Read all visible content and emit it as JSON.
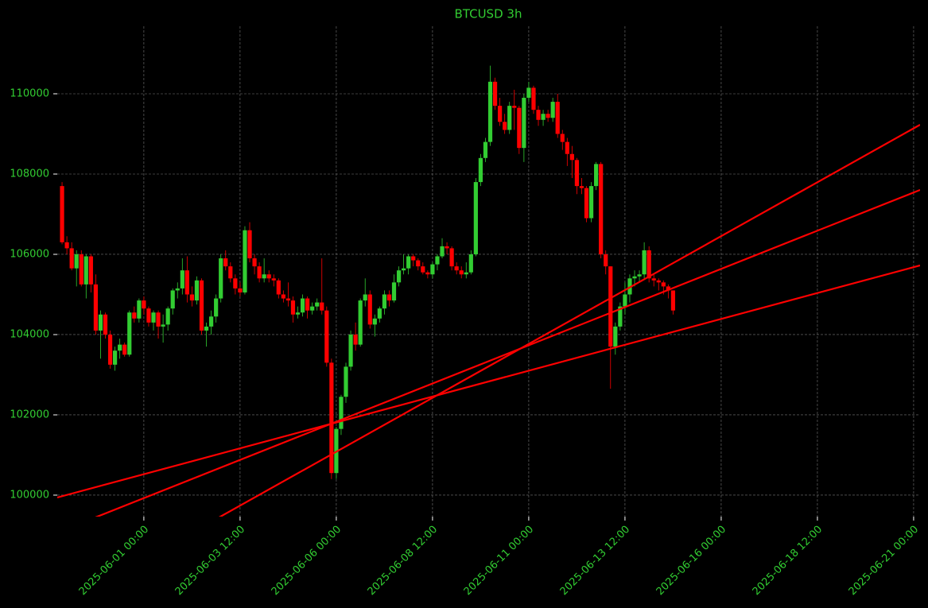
{
  "chart_data": {
    "type": "candlestick",
    "title": "BTCUSD 3h",
    "text_color": "#32cd32",
    "up_color": "#32cd32",
    "down_color": "#ff0000",
    "grid": true,
    "xlim": [
      "2025-05-29 18:00",
      "2025-06-21 04:00"
    ],
    "xticks": [
      "2025-06-01 00:00",
      "2025-06-03 12:00",
      "2025-06-06 00:00",
      "2025-06-08 12:00",
      "2025-06-11 00:00",
      "2025-06-13 12:00",
      "2025-06-16 00:00",
      "2025-06-18 12:00",
      "2025-06-21 00:00"
    ],
    "ylim": [
      99465,
      111683
    ],
    "yticks": [
      100000,
      102000,
      104000,
      106000,
      108000,
      110000
    ],
    "x": [
      "2025-05-29 21:00",
      "2025-05-30 00:00",
      "2025-05-30 03:00",
      "2025-05-30 06:00",
      "2025-05-30 09:00",
      "2025-05-30 12:00",
      "2025-05-30 15:00",
      "2025-05-30 18:00",
      "2025-05-30 21:00",
      "2025-05-31 00:00",
      "2025-05-31 03:00",
      "2025-05-31 06:00",
      "2025-05-31 09:00",
      "2025-05-31 12:00",
      "2025-05-31 15:00",
      "2025-05-31 18:00",
      "2025-05-31 21:00",
      "2025-06-01 00:00",
      "2025-06-01 03:00",
      "2025-06-01 06:00",
      "2025-06-01 09:00",
      "2025-06-01 12:00",
      "2025-06-01 15:00",
      "2025-06-01 18:00",
      "2025-06-01 21:00",
      "2025-06-02 00:00",
      "2025-06-02 03:00",
      "2025-06-02 06:00",
      "2025-06-02 09:00",
      "2025-06-02 12:00",
      "2025-06-02 15:00",
      "2025-06-02 18:00",
      "2025-06-02 21:00",
      "2025-06-03 00:00",
      "2025-06-03 03:00",
      "2025-06-03 06:00",
      "2025-06-03 09:00",
      "2025-06-03 12:00",
      "2025-06-03 15:00",
      "2025-06-03 18:00",
      "2025-06-03 21:00",
      "2025-06-04 00:00",
      "2025-06-04 03:00",
      "2025-06-04 06:00",
      "2025-06-04 09:00",
      "2025-06-04 12:00",
      "2025-06-04 15:00",
      "2025-06-04 18:00",
      "2025-06-04 21:00",
      "2025-06-05 00:00",
      "2025-06-05 03:00",
      "2025-06-05 06:00",
      "2025-06-05 09:00",
      "2025-06-05 12:00",
      "2025-06-05 15:00",
      "2025-06-05 18:00",
      "2025-06-05 21:00",
      "2025-06-06 00:00",
      "2025-06-06 03:00",
      "2025-06-06 06:00",
      "2025-06-06 09:00",
      "2025-06-06 12:00",
      "2025-06-06 15:00",
      "2025-06-06 18:00",
      "2025-06-06 21:00",
      "2025-06-07 00:00",
      "2025-06-07 03:00",
      "2025-06-07 06:00",
      "2025-06-07 09:00",
      "2025-06-07 12:00",
      "2025-06-07 15:00",
      "2025-06-07 18:00",
      "2025-06-07 21:00",
      "2025-06-08 00:00",
      "2025-06-08 03:00",
      "2025-06-08 06:00",
      "2025-06-08 09:00",
      "2025-06-08 12:00",
      "2025-06-08 15:00",
      "2025-06-08 18:00",
      "2025-06-08 21:00",
      "2025-06-09 00:00",
      "2025-06-09 03:00",
      "2025-06-09 06:00",
      "2025-06-09 09:00",
      "2025-06-09 12:00",
      "2025-06-09 15:00",
      "2025-06-09 18:00",
      "2025-06-09 21:00",
      "2025-06-10 00:00",
      "2025-06-10 03:00",
      "2025-06-10 06:00",
      "2025-06-10 09:00",
      "2025-06-10 12:00",
      "2025-06-10 15:00",
      "2025-06-10 18:00",
      "2025-06-10 21:00",
      "2025-06-11 00:00",
      "2025-06-11 03:00",
      "2025-06-11 06:00",
      "2025-06-11 09:00",
      "2025-06-11 12:00",
      "2025-06-11 15:00",
      "2025-06-11 18:00",
      "2025-06-11 21:00",
      "2025-06-12 00:00",
      "2025-06-12 03:00",
      "2025-06-12 06:00",
      "2025-06-12 09:00",
      "2025-06-12 12:00",
      "2025-06-12 15:00",
      "2025-06-12 18:00",
      "2025-06-12 21:00",
      "2025-06-13 00:00",
      "2025-06-13 03:00",
      "2025-06-13 06:00",
      "2025-06-13 09:00",
      "2025-06-13 12:00",
      "2025-06-13 15:00",
      "2025-06-13 18:00",
      "2025-06-13 21:00",
      "2025-06-14 00:00",
      "2025-06-14 03:00",
      "2025-06-14 06:00",
      "2025-06-14 09:00",
      "2025-06-14 12:00",
      "2025-06-14 15:00",
      "2025-06-14 18:00"
    ],
    "open": [
      107700,
      106300,
      106150,
      105650,
      106000,
      105250,
      105950,
      105250,
      104100,
      104500,
      104000,
      103250,
      103600,
      103750,
      103500,
      104550,
      104400,
      104850,
      104650,
      104300,
      104550,
      104200,
      104250,
      104650,
      105100,
      105150,
      105600,
      105000,
      104850,
      105350,
      104100,
      104200,
      104450,
      104900,
      105900,
      105700,
      105400,
      105150,
      105050,
      106600,
      105900,
      105700,
      105400,
      105500,
      105400,
      105350,
      105000,
      104900,
      104850,
      104500,
      104550,
      104900,
      104600,
      104700,
      104800,
      104600,
      103300,
      100550,
      101650,
      102450,
      103200,
      104000,
      103750,
      104850,
      105000,
      104250,
      104400,
      104650,
      105000,
      104850,
      105300,
      105600,
      105650,
      105950,
      105850,
      105700,
      105550,
      105500,
      105750,
      105950,
      106200,
      106150,
      105700,
      105600,
      105500,
      105550,
      106000,
      107800,
      108400,
      108800,
      110300,
      109700,
      109300,
      109100,
      109700,
      109650,
      108650,
      109900,
      110150,
      109600,
      109350,
      109500,
      109400,
      109800,
      109000,
      108800,
      108500,
      108350,
      107700,
      107650,
      106900,
      107700,
      108250,
      106000,
      105700,
      103700,
      104200,
      104700,
      105000,
      105400,
      105450,
      105500,
      106100,
      105400,
      105350,
      105300,
      105200,
      105100
    ],
    "high": [
      107800,
      106450,
      106300,
      106100,
      106100,
      106000,
      106000,
      105500,
      104600,
      104550,
      104100,
      103700,
      103900,
      103800,
      104600,
      104700,
      104900,
      104950,
      104700,
      104600,
      104600,
      104500,
      104700,
      105150,
      105300,
      105900,
      105950,
      105200,
      105450,
      105400,
      104300,
      104600,
      105000,
      106000,
      106100,
      105800,
      105500,
      105300,
      106700,
      106800,
      106000,
      105800,
      105900,
      105600,
      105500,
      105400,
      105100,
      105300,
      104950,
      104700,
      105000,
      104950,
      104800,
      104900,
      105900,
      104700,
      103400,
      101700,
      102500,
      103300,
      104100,
      104300,
      104900,
      105400,
      105100,
      104500,
      104700,
      105100,
      105100,
      105500,
      105700,
      106000,
      106000,
      106000,
      105900,
      105800,
      105600,
      105800,
      106000,
      106400,
      106300,
      106200,
      105800,
      105700,
      105800,
      106100,
      107900,
      108500,
      108900,
      110700,
      110400,
      109900,
      109500,
      109800,
      110100,
      109700,
      110000,
      110300,
      110200,
      109700,
      109600,
      109600,
      109900,
      110000,
      109100,
      108900,
      108700,
      108400,
      107900,
      107700,
      107800,
      108300,
      108300,
      106100,
      105700,
      104300,
      104800,
      105300,
      105500,
      105600,
      105600,
      106300,
      106200,
      105500,
      105400,
      105350,
      105250,
      105100
    ],
    "low": [
      106250,
      106000,
      105600,
      105200,
      105200,
      104900,
      105050,
      104000,
      103400,
      103900,
      103150,
      103100,
      103400,
      103450,
      103450,
      104300,
      104300,
      104500,
      104200,
      104100,
      103900,
      103800,
      104100,
      104500,
      104900,
      105000,
      104800,
      104700,
      104750,
      104000,
      103700,
      104000,
      104300,
      104800,
      105600,
      105300,
      105000,
      104950,
      105000,
      105800,
      105500,
      105300,
      105300,
      105300,
      105200,
      104900,
      104800,
      104700,
      104300,
      104400,
      104450,
      104400,
      104500,
      104600,
      104500,
      103200,
      100400,
      100400,
      101500,
      102300,
      103100,
      103600,
      103700,
      104700,
      104150,
      103950,
      104300,
      104500,
      104700,
      104800,
      105200,
      105500,
      105500,
      105700,
      105600,
      105500,
      105400,
      105400,
      105600,
      105900,
      106000,
      105600,
      105500,
      105400,
      105400,
      105500,
      105950,
      107700,
      108300,
      108700,
      109600,
      109200,
      109000,
      109000,
      109100,
      108500,
      108300,
      109800,
      109500,
      109200,
      109200,
      109300,
      109300,
      108900,
      108600,
      108200,
      107900,
      107500,
      107500,
      106800,
      106800,
      107600,
      105900,
      105500,
      102650,
      103500,
      104100,
      104500,
      104800,
      105200,
      105300,
      105400,
      105300,
      105200,
      105100,
      105000,
      104900,
      104500
    ],
    "close": [
      106300,
      106150,
      105650,
      106000,
      105250,
      105950,
      105250,
      104100,
      104500,
      104000,
      103250,
      103600,
      103750,
      103500,
      104550,
      104400,
      104850,
      104650,
      104300,
      104550,
      104200,
      104250,
      104650,
      105100,
      105150,
      105600,
      105000,
      104850,
      105350,
      104100,
      104200,
      104450,
      104900,
      105900,
      105700,
      105400,
      105150,
      105050,
      106600,
      105900,
      105700,
      105400,
      105500,
      105400,
      105350,
      105000,
      104900,
      104850,
      104500,
      104550,
      104900,
      104600,
      104700,
      104800,
      104600,
      103300,
      100550,
      101650,
      102450,
      103200,
      104000,
      103750,
      104850,
      105000,
      104250,
      104400,
      104650,
      105000,
      104850,
      105300,
      105600,
      105650,
      105950,
      105850,
      105700,
      105550,
      105500,
      105750,
      105950,
      106200,
      106150,
      105700,
      105600,
      105500,
      105550,
      106000,
      107800,
      108400,
      108800,
      110300,
      109700,
      109300,
      109100,
      109700,
      109650,
      108650,
      109900,
      110150,
      109600,
      109350,
      109500,
      109400,
      109800,
      109000,
      108800,
      108500,
      108350,
      107700,
      107650,
      106900,
      107700,
      108250,
      106000,
      105700,
      103700,
      104200,
      104700,
      105000,
      105400,
      105450,
      105500,
      106100,
      105400,
      105350,
      105300,
      105200,
      105100,
      104600
    ],
    "trend_color": "#ff0000",
    "trend_lines": [
      {
        "x": [
          "2025-05-29 18:00",
          "2025-06-21 04:00"
        ],
        "values": [
          99941,
          105723
        ]
      },
      {
        "x": [
          "2025-05-29 18:00",
          "2025-06-21 04:00"
        ],
        "values": [
          99069,
          107604
        ]
      },
      {
        "x": [
          "2025-05-29 18:00",
          "2025-06-21 04:00"
        ],
        "values": [
          97188,
          109228
        ]
      }
    ]
  }
}
